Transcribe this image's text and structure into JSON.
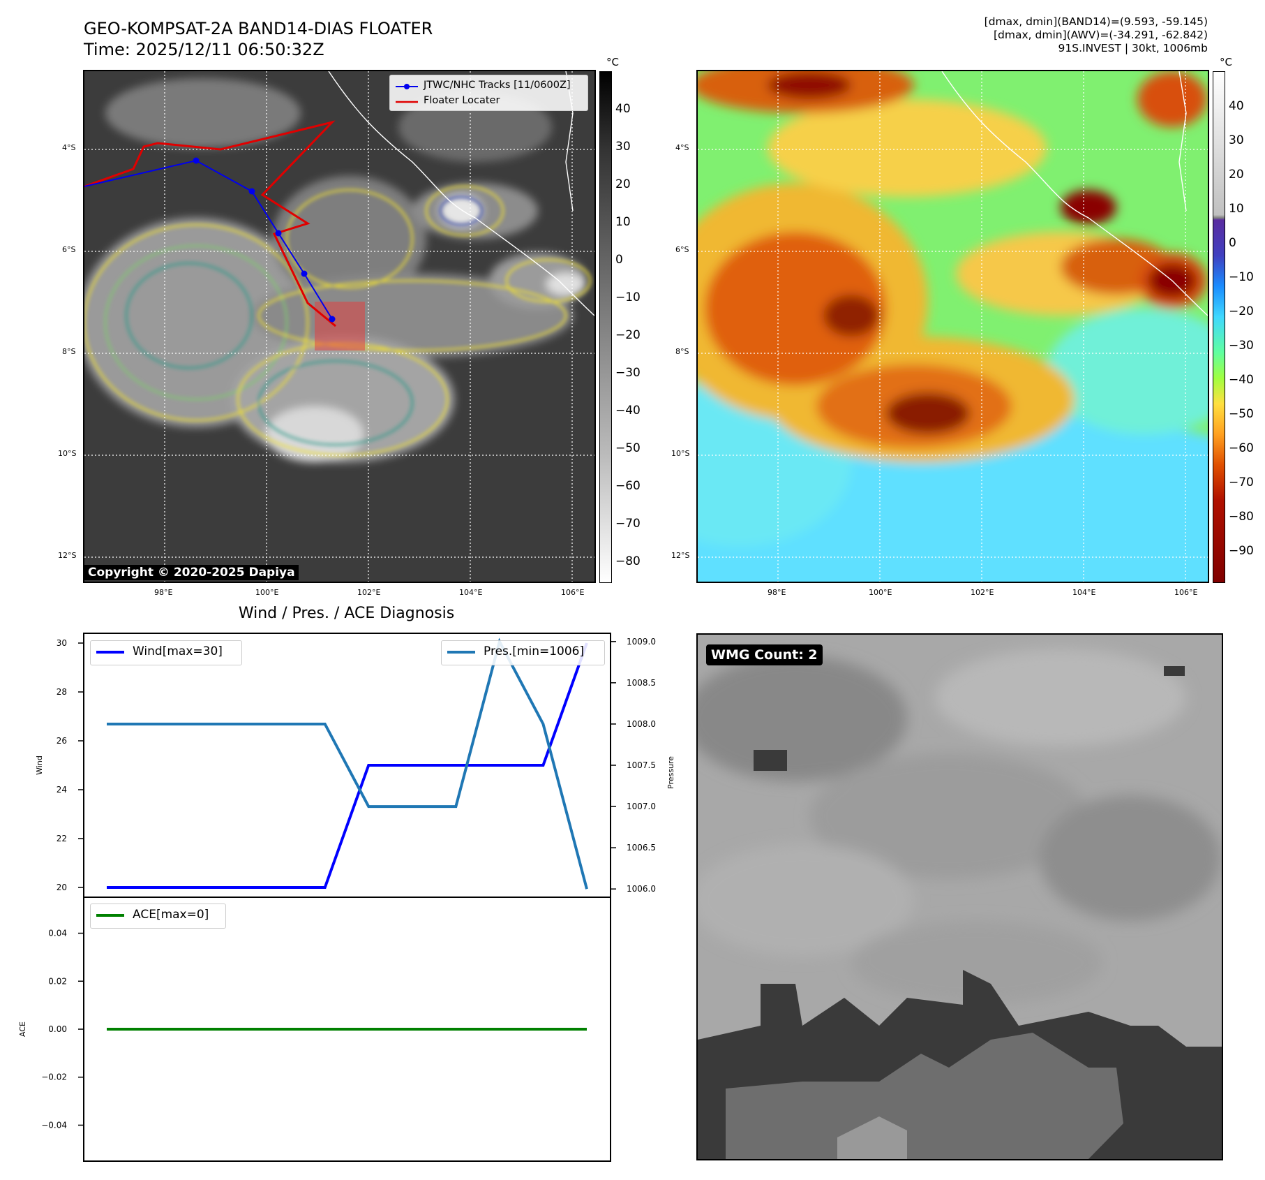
{
  "header": {
    "title_line1": "GEO-KOMPSAT-2A BAND14-DIAS FLOATER",
    "title_line2": "Time: 2025/12/11 06:50:32Z",
    "info_line1": "[dmax, dmin](BAND14)=(9.593, -59.145)",
    "info_line2": "[dmax, dmin](AWV)=(-34.291, -62.842)",
    "info_line3": "91S.INVEST | 30kt, 1006mb"
  },
  "map": {
    "lat_labels": [
      "4°S",
      "6°S",
      "8°S",
      "10°S",
      "12°S"
    ],
    "lon_labels": [
      "98°E",
      "100°E",
      "102°E",
      "104°E",
      "106°E"
    ],
    "copyright": "Copyright © 2020-2025 Dapiya",
    "legend": {
      "tracks": "JTWC/NHC Tracks [11/0600Z]",
      "floater": "Floater Locater"
    },
    "colors": {
      "track": "#0000ee",
      "floater": "#e00000",
      "floater_box": "#e83a3a"
    }
  },
  "colorbars": {
    "unit": "°C",
    "band14_ticks": [
      "40",
      "30",
      "20",
      "10",
      "0",
      "−10",
      "−20",
      "−30",
      "−40",
      "−50",
      "−60",
      "−70",
      "−80"
    ],
    "awv_ticks": [
      "40",
      "30",
      "20",
      "10",
      "0",
      "−10",
      "−20",
      "−30",
      "−40",
      "−50",
      "−60",
      "−70",
      "−80",
      "−90"
    ]
  },
  "diagnosis": {
    "title": "Wind / Pres. / ACE Diagnosis",
    "wind_legend": "Wind[max=30]",
    "pres_legend": "Pres.[min=1006]",
    "ace_legend": "ACE[max=0]",
    "wind_ylabel": "Wind",
    "pres_ylabel": "Pressure",
    "ace_ylabel": "ACE",
    "colors": {
      "wind": "#0000ff",
      "pres": "#1f77b4",
      "ace": "#008000"
    }
  },
  "wmg": {
    "label": "WMG Count: 2"
  },
  "chart_data": [
    {
      "type": "line",
      "title": "Wind / Pres. / ACE Diagnosis",
      "x": [
        0,
        1,
        2,
        3,
        4,
        5,
        6,
        7,
        8,
        9,
        10,
        11
      ],
      "series": [
        {
          "name": "Wind[max=30]",
          "axis": "left",
          "values": [
            20,
            20,
            20,
            20,
            20,
            20,
            25,
            25,
            25,
            25,
            25,
            30
          ]
        },
        {
          "name": "Pres.[min=1006]",
          "axis": "right",
          "values": [
            1008,
            1008,
            1008,
            1008,
            1008,
            1008,
            1007,
            1007,
            1007,
            1009,
            1008,
            1006
          ]
        }
      ],
      "ylabel": "Wind",
      "ylabel_right": "Pressure",
      "ylim": [
        19.6,
        30.4
      ],
      "ylim_right": [
        1005.9,
        1009.1
      ],
      "yticks": [
        20,
        22,
        24,
        26,
        28,
        30
      ],
      "yticks_right": [
        "1006.0",
        "1006.5",
        "1007.0",
        "1007.5",
        "1008.0",
        "1008.5",
        "1009.0"
      ],
      "legend": [
        "top-left",
        "top-right"
      ]
    },
    {
      "type": "line",
      "x": [
        0,
        1,
        2,
        3,
        4,
        5,
        6,
        7,
        8,
        9,
        10,
        11
      ],
      "series": [
        {
          "name": "ACE[max=0]",
          "values": [
            0,
            0,
            0,
            0,
            0,
            0,
            0,
            0,
            0,
            0,
            0,
            0
          ]
        }
      ],
      "ylabel": "ACE",
      "ylim": [
        -0.055,
        0.055
      ],
      "yticks": [
        "0.04",
        "0.02",
        "0.00",
        "−0.02",
        "−0.04"
      ],
      "legend": "top-left"
    }
  ]
}
